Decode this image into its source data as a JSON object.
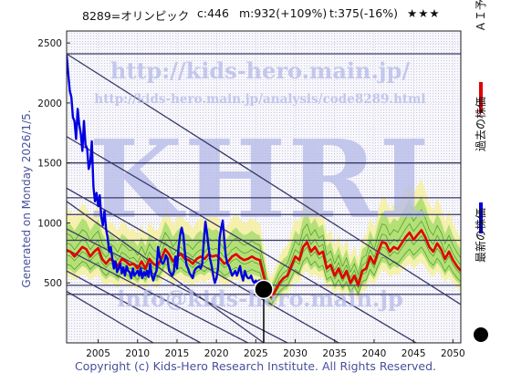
{
  "header": {
    "code_name": "8289=オリンピック",
    "current": "c:446",
    "max": "m:932(+109%)",
    "target": "t:375(-16%)",
    "rating": "★★★"
  },
  "side_text": "Generated on Monday 2026/1/5.",
  "footer": "Copyright (c) Kids-Hero Research Institute. All Rights Reserved.",
  "watermarks": {
    "url_main": "http://kids-hero.main.jp/",
    "url_analysis": "http://kids-hero.main.jp/analysis/code8289.html",
    "logo": "KHRI",
    "email": "info@kids-hero.main.jp"
  },
  "legend": {
    "ai_forecast": "ＡＩ予測",
    "past_price": "過去の株価",
    "latest_price": "最新の株価"
  },
  "colors": {
    "ai_forecast": "#e00000",
    "past_price": "#0000e0",
    "latest_marker": "#000000",
    "band_green": "#7fd24a",
    "band_yellow": "#f6f0a0",
    "guide_lines": "#3a3a6a"
  },
  "chart_data": {
    "type": "line",
    "title": "",
    "xlabel": "",
    "ylabel": "",
    "xlim": [
      2001,
      2051
    ],
    "ylim": [
      0,
      2600
    ],
    "x_ticks": [
      2005,
      2010,
      2015,
      2020,
      2025,
      2030,
      2035,
      2040,
      2045,
      2050
    ],
    "y_ticks": [
      500,
      1000,
      1500,
      2000,
      2500
    ],
    "grid": true,
    "horizontal_levels": [
      2410,
      1500,
      1210,
      1070,
      855,
      480,
      405
    ],
    "diagonal_lines": [
      {
        "from": [
          2001,
          2410
        ],
        "to": [
          2051,
          320
        ]
      },
      {
        "from": [
          2001,
          1720
        ],
        "to": [
          2051,
          -220
        ]
      },
      {
        "from": [
          2001,
          1290
        ],
        "to": [
          2035.5,
          0
        ]
      },
      {
        "from": [
          2001,
          1180
        ],
        "to": [
          2026,
          0
        ]
      },
      {
        "from": [
          2001,
          950
        ],
        "to": [
          2029,
          0
        ]
      },
      {
        "from": [
          2001,
          780
        ],
        "to": [
          2024,
          0
        ]
      },
      {
        "from": [
          2001,
          600
        ],
        "to": [
          2018,
          0
        ]
      },
      {
        "from": [
          2001,
          430
        ],
        "to": [
          2012,
          0
        ]
      }
    ],
    "latest": {
      "x": 2026.0,
      "y": 446
    },
    "series": [
      {
        "name": "過去の株価",
        "points": [
          [
            2001.0,
            2400
          ],
          [
            2001.2,
            2250
          ],
          [
            2001.4,
            2100
          ],
          [
            2001.6,
            2050
          ],
          [
            2001.8,
            1880
          ],
          [
            2002.0,
            1850
          ],
          [
            2002.2,
            1700
          ],
          [
            2002.4,
            1950
          ],
          [
            2002.6,
            1820
          ],
          [
            2002.8,
            1740
          ],
          [
            2003.0,
            1600
          ],
          [
            2003.2,
            1850
          ],
          [
            2003.4,
            1650
          ],
          [
            2003.6,
            1620
          ],
          [
            2003.8,
            1450
          ],
          [
            2004.0,
            1500
          ],
          [
            2004.2,
            1680
          ],
          [
            2004.4,
            1300
          ],
          [
            2004.6,
            1180
          ],
          [
            2004.8,
            1250
          ],
          [
            2005.0,
            1140
          ],
          [
            2005.2,
            1230
          ],
          [
            2005.4,
            1050
          ],
          [
            2005.6,
            980
          ],
          [
            2005.8,
            1100
          ],
          [
            2006.0,
            950
          ],
          [
            2006.2,
            880
          ],
          [
            2006.4,
            760
          ],
          [
            2006.6,
            800
          ],
          [
            2006.8,
            700
          ],
          [
            2007.0,
            620
          ],
          [
            2007.2,
            680
          ],
          [
            2007.4,
            590
          ],
          [
            2007.6,
            620
          ],
          [
            2007.8,
            660
          ],
          [
            2008.0,
            580
          ],
          [
            2008.2,
            630
          ],
          [
            2008.4,
            560
          ],
          [
            2008.6,
            640
          ],
          [
            2008.8,
            600
          ],
          [
            2009.0,
            590
          ],
          [
            2009.2,
            540
          ],
          [
            2009.4,
            620
          ],
          [
            2009.6,
            560
          ],
          [
            2009.8,
            580
          ],
          [
            2010.0,
            600
          ],
          [
            2010.2,
            560
          ],
          [
            2010.4,
            620
          ],
          [
            2010.6,
            540
          ],
          [
            2010.8,
            590
          ],
          [
            2011.0,
            560
          ],
          [
            2011.2,
            600
          ],
          [
            2011.4,
            550
          ],
          [
            2011.6,
            660
          ],
          [
            2011.8,
            560
          ],
          [
            2012.0,
            520
          ],
          [
            2012.2,
            570
          ],
          [
            2012.4,
            600
          ],
          [
            2012.6,
            800
          ],
          [
            2012.8,
            720
          ],
          [
            2013.0,
            680
          ],
          [
            2013.2,
            660
          ],
          [
            2013.4,
            680
          ],
          [
            2013.6,
            730
          ],
          [
            2013.8,
            700
          ],
          [
            2014.0,
            600
          ],
          [
            2014.2,
            580
          ],
          [
            2014.4,
            560
          ],
          [
            2014.6,
            590
          ],
          [
            2014.8,
            720
          ],
          [
            2015.0,
            620
          ],
          [
            2015.2,
            800
          ],
          [
            2015.4,
            900
          ],
          [
            2015.6,
            960
          ],
          [
            2015.8,
            900
          ],
          [
            2016.0,
            760
          ],
          [
            2016.2,
            650
          ],
          [
            2016.4,
            620
          ],
          [
            2016.6,
            580
          ],
          [
            2016.8,
            560
          ],
          [
            2017.0,
            540
          ],
          [
            2017.2,
            600
          ],
          [
            2017.4,
            620
          ],
          [
            2017.6,
            630
          ],
          [
            2017.8,
            640
          ],
          [
            2018.0,
            620
          ],
          [
            2018.2,
            660
          ],
          [
            2018.4,
            840
          ],
          [
            2018.6,
            1010
          ],
          [
            2018.8,
            920
          ],
          [
            2019.0,
            800
          ],
          [
            2019.2,
            700
          ],
          [
            2019.4,
            640
          ],
          [
            2019.6,
            560
          ],
          [
            2019.8,
            500
          ],
          [
            2020.0,
            540
          ],
          [
            2020.2,
            620
          ],
          [
            2020.4,
            870
          ],
          [
            2020.6,
            950
          ],
          [
            2020.8,
            1020
          ],
          [
            2021.0,
            860
          ],
          [
            2021.2,
            720
          ],
          [
            2021.4,
            660
          ],
          [
            2021.6,
            640
          ],
          [
            2021.8,
            600
          ],
          [
            2022.0,
            560
          ],
          [
            2022.2,
            580
          ],
          [
            2022.4,
            600
          ],
          [
            2022.6,
            560
          ],
          [
            2022.8,
            600
          ],
          [
            2023.0,
            640
          ],
          [
            2023.2,
            560
          ],
          [
            2023.4,
            520
          ],
          [
            2023.6,
            600
          ],
          [
            2023.8,
            560
          ],
          [
            2024.0,
            540
          ],
          [
            2024.2,
            540
          ],
          [
            2024.4,
            560
          ],
          [
            2024.6,
            520
          ],
          [
            2024.8,
            500
          ],
          [
            2025.0,
            520
          ],
          [
            2025.2,
            500
          ],
          [
            2025.4,
            520
          ],
          [
            2025.6,
            520
          ]
        ]
      },
      {
        "name": "ＡＩ予測",
        "points": [
          [
            2001.0,
            770
          ],
          [
            2001.5,
            760
          ],
          [
            2002.0,
            720
          ],
          [
            2002.5,
            760
          ],
          [
            2003.0,
            800
          ],
          [
            2003.5,
            780
          ],
          [
            2004.0,
            720
          ],
          [
            2004.5,
            760
          ],
          [
            2005.0,
            790
          ],
          [
            2005.5,
            700
          ],
          [
            2006.0,
            660
          ],
          [
            2006.5,
            700
          ],
          [
            2007.0,
            680
          ],
          [
            2007.5,
            640
          ],
          [
            2008.0,
            700
          ],
          [
            2008.5,
            680
          ],
          [
            2009.0,
            650
          ],
          [
            2009.5,
            660
          ],
          [
            2010.0,
            620
          ],
          [
            2010.5,
            680
          ],
          [
            2011.0,
            620
          ],
          [
            2011.5,
            700
          ],
          [
            2012.0,
            660
          ],
          [
            2012.5,
            640
          ],
          [
            2013.0,
            700
          ],
          [
            2013.5,
            780
          ],
          [
            2014.0,
            740
          ],
          [
            2014.5,
            680
          ],
          [
            2015.0,
            720
          ],
          [
            2015.5,
            740
          ],
          [
            2016.0,
            700
          ],
          [
            2016.5,
            690
          ],
          [
            2017.0,
            660
          ],
          [
            2017.5,
            700
          ],
          [
            2018.0,
            720
          ],
          [
            2018.5,
            700
          ],
          [
            2019.0,
            740
          ],
          [
            2019.5,
            720
          ],
          [
            2020.0,
            730
          ],
          [
            2020.5,
            700
          ],
          [
            2021.0,
            660
          ],
          [
            2021.5,
            680
          ],
          [
            2022.0,
            720
          ],
          [
            2022.5,
            740
          ],
          [
            2023.0,
            710
          ],
          [
            2023.5,
            690
          ],
          [
            2024.0,
            700
          ],
          [
            2024.5,
            720
          ],
          [
            2025.0,
            700
          ],
          [
            2025.5,
            690
          ],
          [
            2026.0,
            560
          ],
          [
            2026.5,
            420
          ],
          [
            2027.0,
            380
          ],
          [
            2027.5,
            440
          ],
          [
            2028.0,
            500
          ],
          [
            2028.5,
            540
          ],
          [
            2029.0,
            560
          ],
          [
            2029.5,
            640
          ],
          [
            2030.0,
            720
          ],
          [
            2030.5,
            690
          ],
          [
            2031.0,
            800
          ],
          [
            2031.5,
            840
          ],
          [
            2032.0,
            760
          ],
          [
            2032.5,
            800
          ],
          [
            2033.0,
            740
          ],
          [
            2033.5,
            760
          ],
          [
            2034.0,
            620
          ],
          [
            2034.5,
            650
          ],
          [
            2035.0,
            560
          ],
          [
            2035.5,
            620
          ],
          [
            2036.0,
            540
          ],
          [
            2036.5,
            600
          ],
          [
            2037.0,
            500
          ],
          [
            2037.5,
            560
          ],
          [
            2038.0,
            480
          ],
          [
            2038.5,
            600
          ],
          [
            2039.0,
            620
          ],
          [
            2039.5,
            720
          ],
          [
            2040.0,
            660
          ],
          [
            2040.5,
            760
          ],
          [
            2041.0,
            840
          ],
          [
            2041.5,
            830
          ],
          [
            2042.0,
            760
          ],
          [
            2042.5,
            800
          ],
          [
            2043.0,
            780
          ],
          [
            2043.5,
            830
          ],
          [
            2044.0,
            880
          ],
          [
            2044.5,
            920
          ],
          [
            2045.0,
            860
          ],
          [
            2045.5,
            900
          ],
          [
            2046.0,
            940
          ],
          [
            2046.5,
            880
          ],
          [
            2047.0,
            800
          ],
          [
            2047.5,
            760
          ],
          [
            2048.0,
            830
          ],
          [
            2048.5,
            780
          ],
          [
            2049.0,
            700
          ],
          [
            2049.5,
            760
          ],
          [
            2050.0,
            690
          ],
          [
            2050.5,
            640
          ],
          [
            2051.0,
            600
          ]
        ]
      }
    ]
  }
}
